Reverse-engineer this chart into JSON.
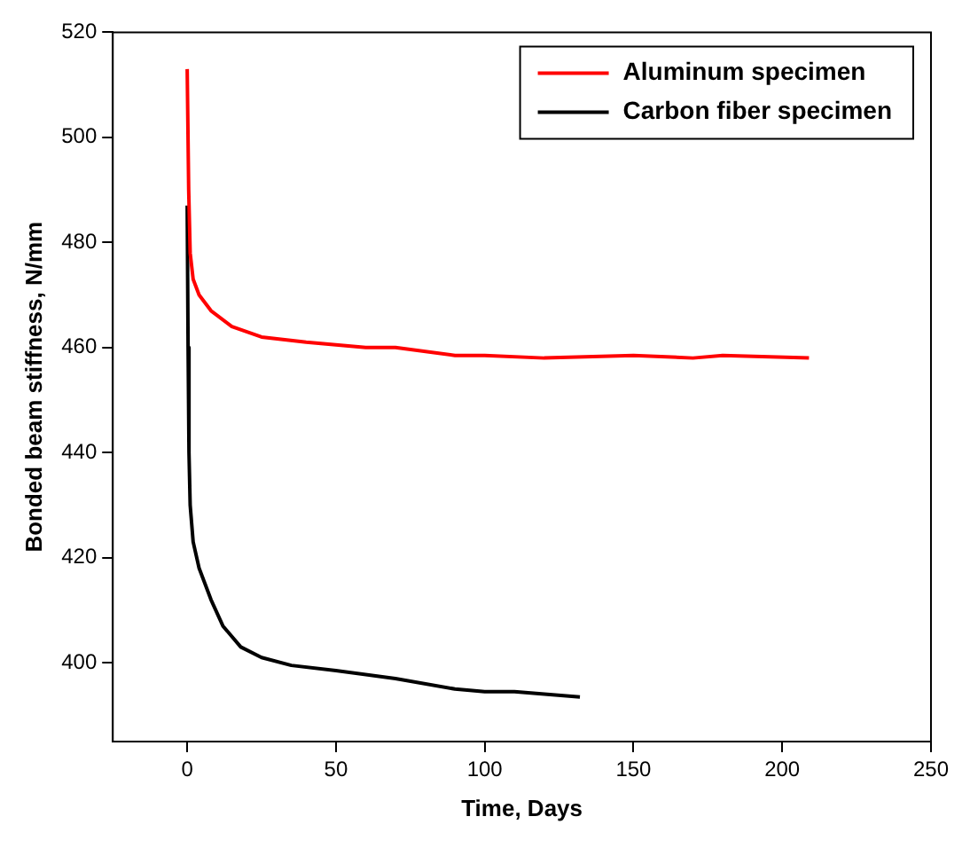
{
  "chart_data": {
    "type": "line",
    "xlabel": "Time, Days",
    "ylabel": "Bonded beam stiffness, N/mm",
    "xlim": [
      -25,
      250
    ],
    "xticks": [
      0,
      50,
      100,
      150,
      200,
      250
    ],
    "ylim": [
      385,
      520
    ],
    "yticks": [
      400,
      420,
      440,
      460,
      480,
      500,
      520
    ],
    "grid": false,
    "legend": "top right",
    "marker": "none",
    "line_style": "solid",
    "series": [
      {
        "name": "Aluminum specimen",
        "color": "#ff0000",
        "x": [
          0,
          0.5,
          1,
          2,
          4,
          8,
          15,
          25,
          40,
          60,
          70,
          90,
          100,
          120,
          150,
          170,
          180,
          209
        ],
        "values": [
          513,
          490,
          478,
          473,
          470,
          467,
          464,
          462,
          461,
          460,
          460,
          458.5,
          458.5,
          458,
          458.5,
          458,
          458.5,
          458
        ]
      },
      {
        "name": "Carbon fiber specimen",
        "color": "#000000",
        "x": [
          0,
          0.3,
          0.6,
          1,
          2,
          4,
          8,
          12,
          18,
          25,
          35,
          50,
          70,
          90,
          100,
          110,
          132
        ],
        "values": [
          487,
          460,
          440,
          430,
          423,
          418,
          412,
          407,
          403,
          401,
          399.5,
          398.5,
          397,
          395,
          394.5,
          394.5,
          393.5
        ]
      }
    ]
  }
}
